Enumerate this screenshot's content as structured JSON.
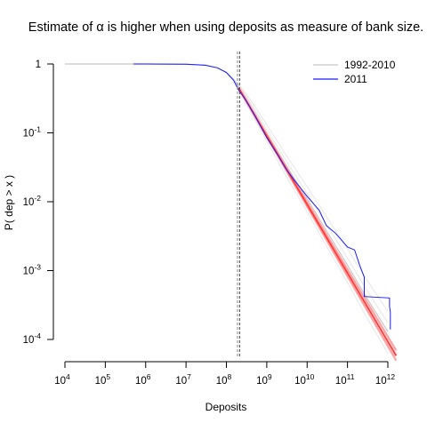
{
  "chart_data": {
    "type": "line",
    "title": "Estimate of α is higher when using deposits as measure of bank size.",
    "xlabel": "Deposits",
    "ylabel": "P( dep > x )",
    "x_scale": "log10",
    "y_scale": "log10",
    "xlim": [
      10000,
      1600000000000
    ],
    "ylim": [
      0.0001,
      1
    ],
    "x_ticks": [
      {
        "value": 10000,
        "base": "10",
        "exp": "4"
      },
      {
        "value": 100000,
        "base": "10",
        "exp": "5"
      },
      {
        "value": 1000000,
        "base": "10",
        "exp": "6"
      },
      {
        "value": 10000000,
        "base": "10",
        "exp": "7"
      },
      {
        "value": 100000000,
        "base": "10",
        "exp": "8"
      },
      {
        "value": 1000000000,
        "base": "10",
        "exp": "9"
      },
      {
        "value": 10000000000,
        "base": "10",
        "exp": "10"
      },
      {
        "value": 100000000000,
        "base": "10",
        "exp": "11"
      },
      {
        "value": 1000000000000,
        "base": "10",
        "exp": "12"
      }
    ],
    "y_ticks": [
      {
        "value": 1,
        "base": "1",
        "exp": ""
      },
      {
        "value": 0.1,
        "base": "10",
        "exp": "-1"
      },
      {
        "value": 0.01,
        "base": "10",
        "exp": "-2"
      },
      {
        "value": 0.001,
        "base": "10",
        "exp": "-3"
      },
      {
        "value": 0.0001,
        "base": "10",
        "exp": "-4"
      }
    ],
    "grid": false,
    "legend_position": "top-right",
    "series": [
      {
        "name": "1992-2010",
        "color": "#c8c8c8",
        "style": "solid",
        "x": [
          10000,
          100000,
          1000000,
          10000000,
          30000000,
          60000000,
          100000000,
          150000000,
          200000000,
          300000000,
          500000000,
          1000000000,
          3000000000,
          10000000000,
          30000000000,
          100000000000,
          300000000000,
          1000000000000
        ],
        "y": [
          1,
          1,
          1,
          0.99,
          0.96,
          0.88,
          0.76,
          0.6,
          0.47,
          0.33,
          0.2,
          0.1,
          0.034,
          0.011,
          0.0038,
          0.0012,
          0.0004,
          0.00013
        ]
      },
      {
        "name": "2011",
        "color": "#1a1aff",
        "style": "solid",
        "x": [
          500000,
          1000000,
          10000000,
          30000000,
          60000000,
          100000000,
          150000000,
          200000000,
          300000000,
          500000000,
          1000000000,
          2000000000,
          3000000000,
          5000000000,
          10000000000,
          20000000000,
          30000000000,
          50000000000,
          70000000000,
          100000000000,
          150000000000,
          200000000000,
          260000000000,
          260000000000,
          1100000000000,
          1100000000000,
          1150000000000,
          1150000000000
        ],
        "y": [
          1,
          1,
          0.99,
          0.96,
          0.88,
          0.75,
          0.58,
          0.42,
          0.3,
          0.18,
          0.085,
          0.045,
          0.03,
          0.02,
          0.012,
          0.0075,
          0.0045,
          0.0035,
          0.0028,
          0.0022,
          0.002,
          0.0012,
          0.0008,
          0.00042,
          0.0004,
          0.0003,
          0.00025,
          0.00014
        ]
      },
      {
        "name": "",
        "color": "#ff3333",
        "style": "power-law fit",
        "x": [
          200000000,
          1600000000000
        ],
        "y": [
          0.45,
          5.8e-05
        ]
      },
      {
        "name": "",
        "color": "#444444",
        "style": "dashed vertical",
        "x": [
          200000000,
          200000000
        ],
        "y": [
          0.0001,
          1
        ]
      }
    ]
  }
}
